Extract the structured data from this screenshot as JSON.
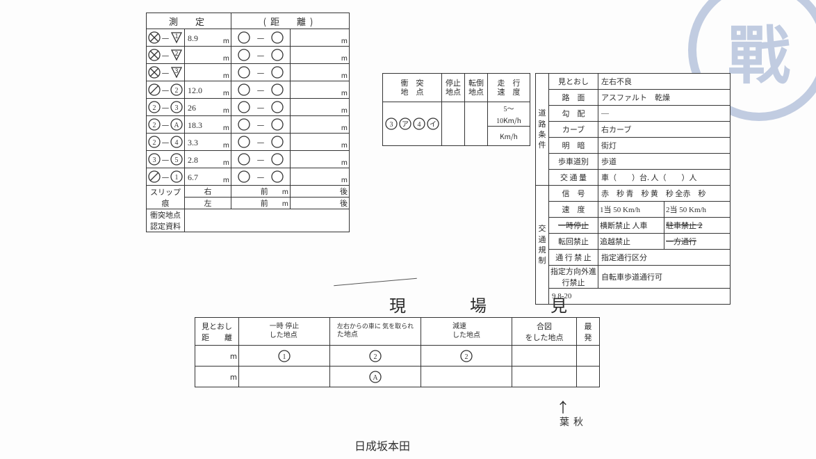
{
  "colors": {
    "ink": "#2a2a2a",
    "border": "#333333",
    "paper": "#fdfdfd",
    "stamp": "rgba(120,145,190,0.45)"
  },
  "stamp_char": "戰",
  "measurement": {
    "header_left": "測　定",
    "header_right": "(距　離)",
    "unit": "m",
    "rows": [
      {
        "sym1": {
          "shape": "circleX",
          "n": ""
        },
        "sym2": {
          "shape": "triDown",
          "n": "1"
        },
        "val": "8.9"
      },
      {
        "sym1": {
          "shape": "circleX",
          "n": ""
        },
        "sym2": {
          "shape": "triDown",
          "n": "2"
        },
        "val": ""
      },
      {
        "sym1": {
          "shape": "circleX",
          "n": ""
        },
        "sym2": {
          "shape": "triDown",
          "n": "3"
        },
        "val": ""
      },
      {
        "sym1": {
          "shape": "circleSlash",
          "n": ""
        },
        "sym2": {
          "shape": "circle",
          "n": "2"
        },
        "val": "12.0"
      },
      {
        "sym1": {
          "shape": "circle",
          "n": "2"
        },
        "sym2": {
          "shape": "circle",
          "n": "3"
        },
        "val": "26"
      },
      {
        "sym1": {
          "shape": "circle",
          "n": "2"
        },
        "sym2": {
          "shape": "circle",
          "n": "A"
        },
        "val": "18.3"
      },
      {
        "sym1": {
          "shape": "circle",
          "n": "2"
        },
        "sym2": {
          "shape": "circle",
          "n": "4"
        },
        "val": "3.3"
      },
      {
        "sym1": {
          "shape": "circle",
          "n": "3"
        },
        "sym2": {
          "shape": "circle",
          "n": "5"
        },
        "val": "2.8"
      },
      {
        "sym1": {
          "shape": "circleSlash",
          "n": ""
        },
        "sym2": {
          "shape": "circle",
          "n": "1"
        },
        "val": "6.7"
      }
    ],
    "slip": {
      "label": "スリップ\n痕",
      "right": "右",
      "left": "左",
      "front": "前",
      "rear": "後",
      "m": "m"
    },
    "doc_label": "衝突地点\n認定資料"
  },
  "collision": {
    "h1": "衝　突\n地　点",
    "h2": "停止\n地点",
    "h3": "転倒\n地点",
    "h4": "走　行\n速　度",
    "sym_row": [
      "3",
      "ア",
      "4",
      "イ"
    ],
    "speed1": "5～\n10",
    "speed2": "",
    "kmh": "Km/h"
  },
  "road": {
    "side": "道\n路\n条\n件",
    "r1": {
      "l": "見とおし",
      "v": "左右不良"
    },
    "r2": {
      "l": "路　面",
      "v": "アスファルト　乾燥"
    },
    "r3": {
      "l": "勾　配",
      "v": "—"
    },
    "r4": {
      "l": "カーブ",
      "v": "右カーブ"
    },
    "r5": {
      "l": "明　暗",
      "v": "街灯"
    },
    "r6": {
      "l": "歩車道別",
      "v": "歩道"
    },
    "r7": {
      "l": "交 通 量",
      "v": "車（　　）台.  人（　　）人"
    }
  },
  "traffic": {
    "side": "交\n通\n規\n制",
    "r1": {
      "l": "信　号",
      "v": "赤　秒 青　秒 黄　秒 全赤　秒"
    },
    "r2": {
      "l": "速　度",
      "v1": "1当  50 Km/h",
      "v2": "2当  50 Km/h"
    },
    "r3": {
      "l": "一時停止",
      "v1": "横断禁止 人車",
      "v2": "駐車禁止 2"
    },
    "r4": {
      "l": "転回禁止",
      "v1": "追越禁止",
      "v2": "一方通行"
    },
    "r5": {
      "l": "通 行 禁 止",
      "v": "指定通行区分"
    },
    "r6": {
      "l": "指定方向外進行禁止",
      "v": "自転車歩道通行可"
    },
    "date": "9  8-20"
  },
  "bottom": {
    "title": "現　場　見",
    "h0": "見とおし\n距　　離",
    "h1": {
      "hw": "一時\n停止",
      "p": "した地点"
    },
    "h2": {
      "hw": "左右からの車に\n気を取られ",
      "p": "た地点"
    },
    "h3": {
      "hw": "減速",
      "p": "した地点"
    },
    "h4": "合図\nをした地点",
    "h5": "最\n発",
    "unit": "m",
    "row1": [
      "1",
      "2",
      "2",
      "",
      ""
    ],
    "row2": [
      "",
      "A",
      "",
      "",
      ""
    ]
  },
  "arrow_note": "秋\n葉",
  "scribble": "日成坂本田"
}
